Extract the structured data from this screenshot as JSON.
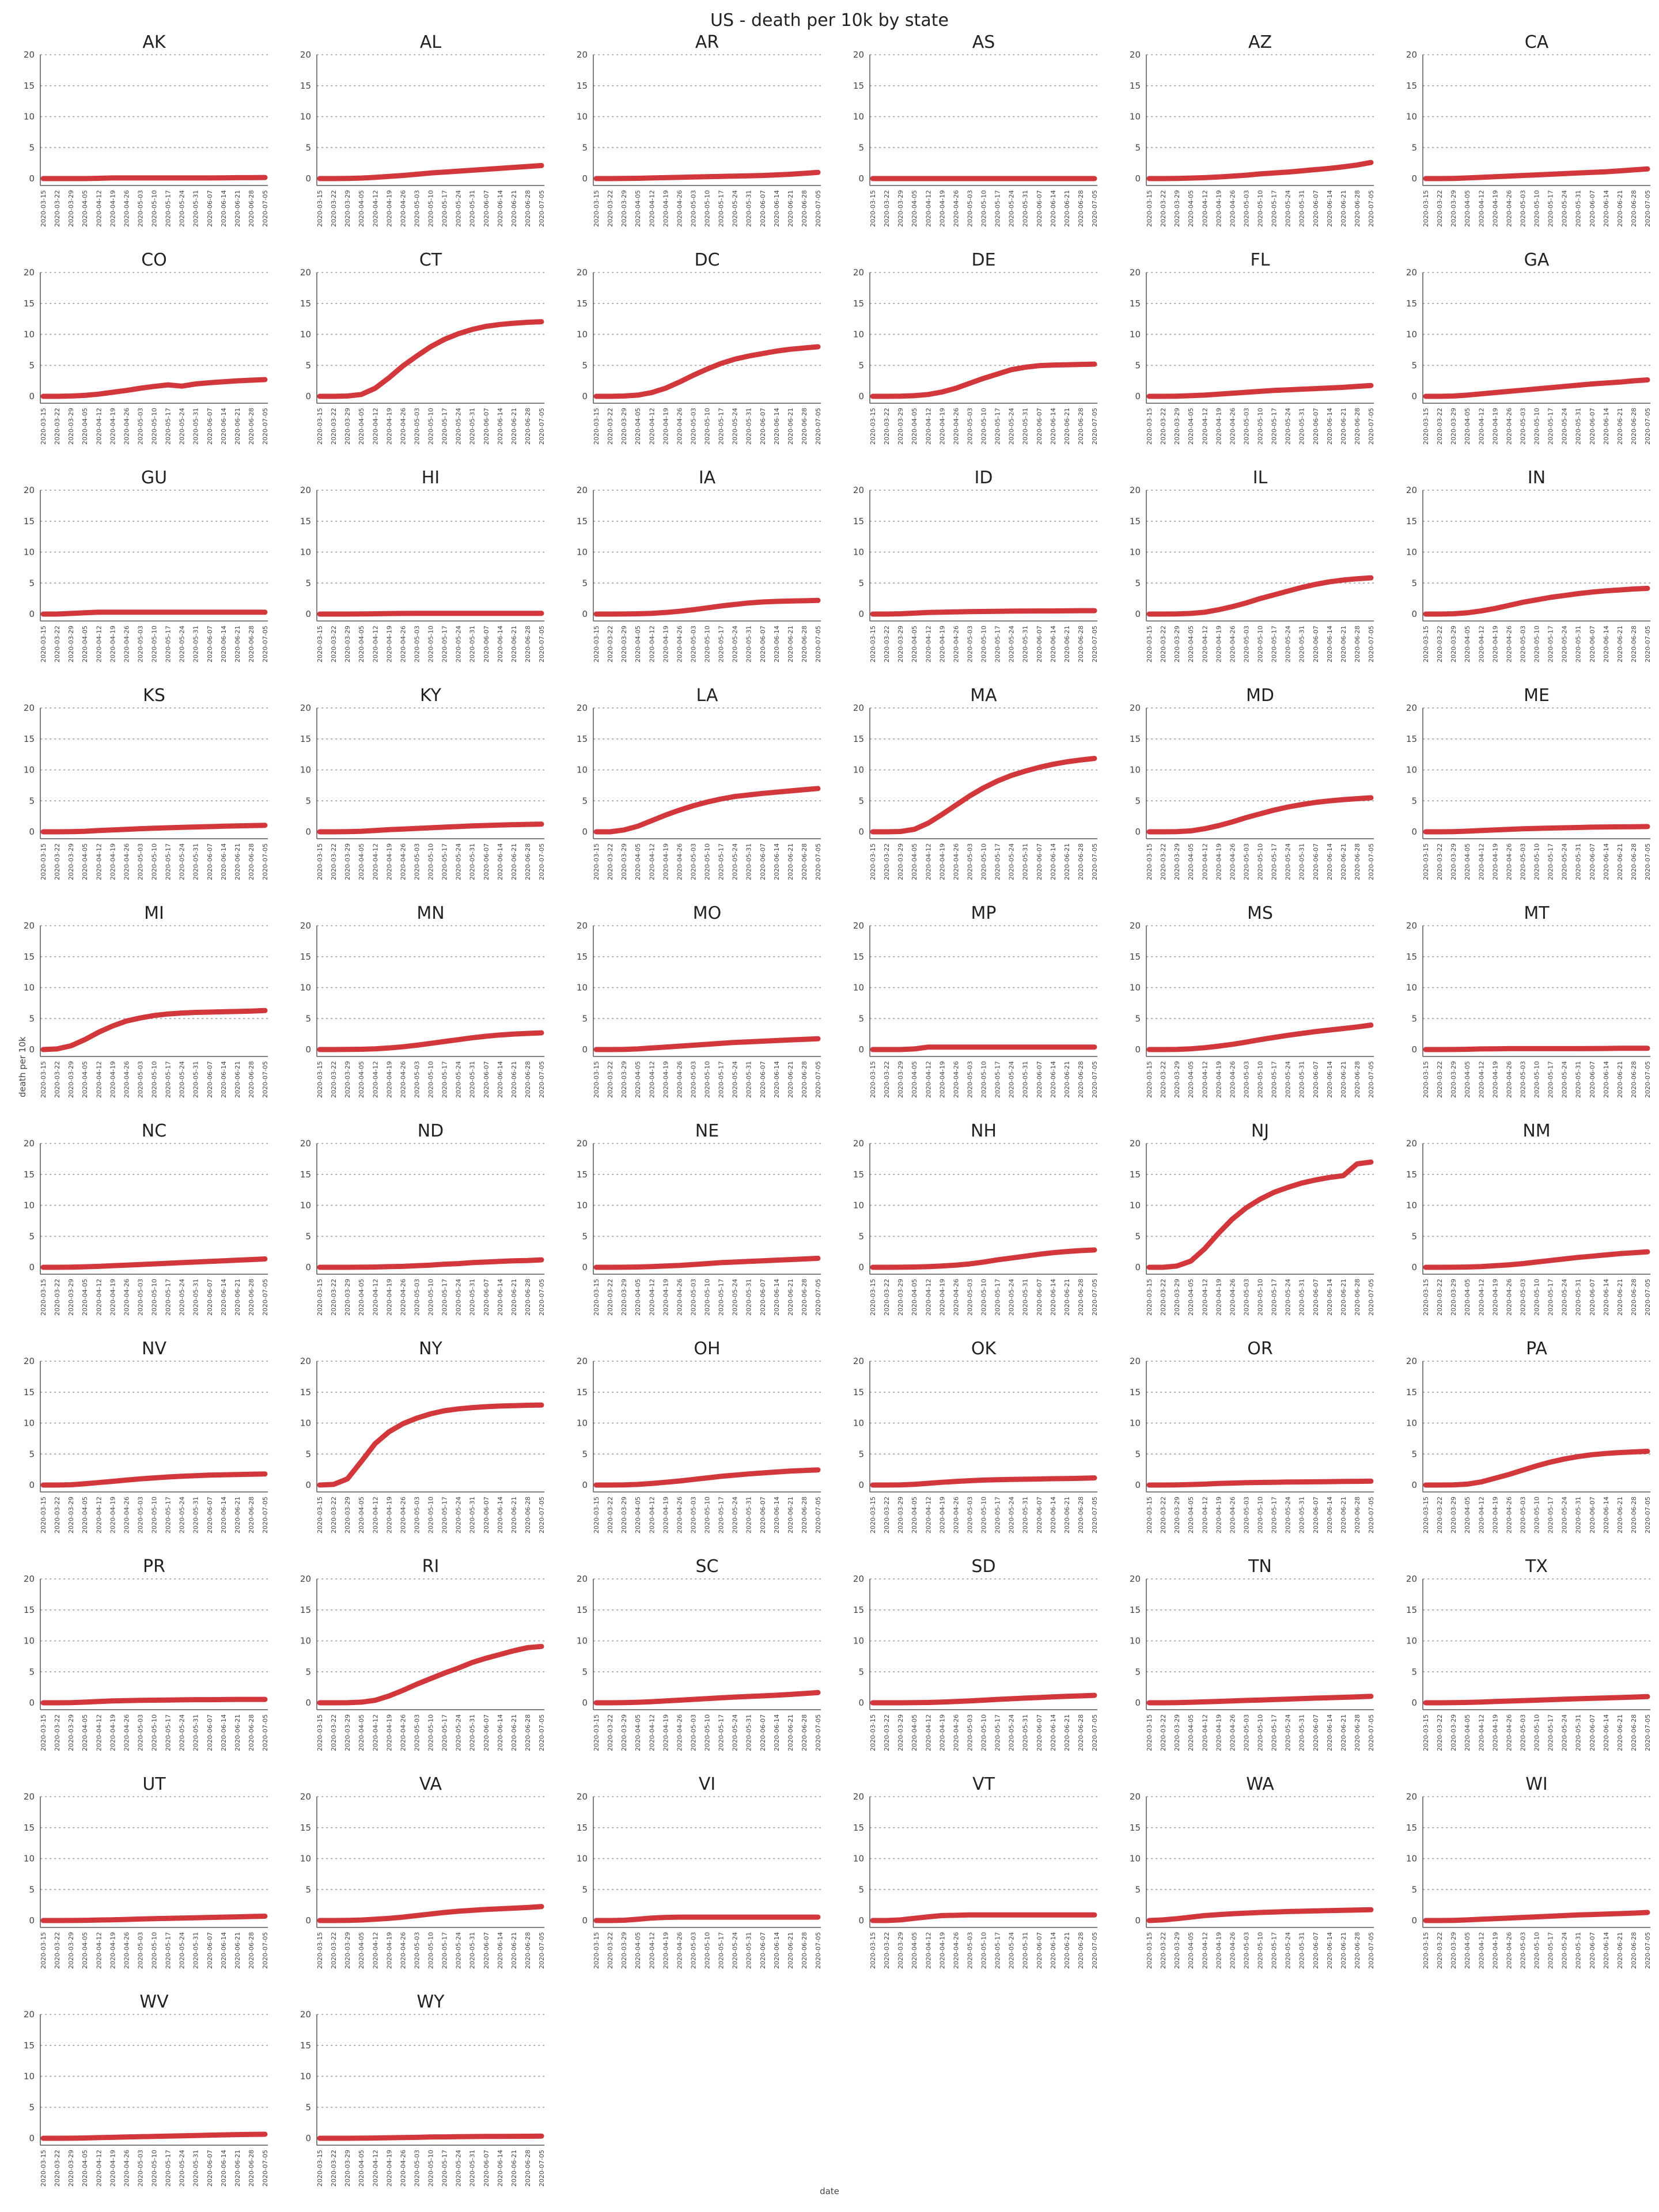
{
  "chart_data": {
    "type": "line",
    "title": "US - death per 10k by state",
    "xlabel": "date",
    "ylabel": "death per 10k",
    "ylim": [
      0,
      20
    ],
    "yticks": [
      0,
      5,
      10,
      15,
      20
    ],
    "grid": "horizontal dotted",
    "color": "#d2373b",
    "x_start": "2020-03-15",
    "x_end": "2020-07-05",
    "x_ticks": [
      "2020-03-15",
      "2020-03-22",
      "2020-03-29",
      "2020-04-05",
      "2020-04-12",
      "2020-04-19",
      "2020-04-26",
      "2020-05-03",
      "2020-05-10",
      "2020-05-17",
      "2020-05-24",
      "2020-05-31",
      "2020-06-07",
      "2020-06-14",
      "2020-06-21",
      "2020-06-28",
      "2020-07-05"
    ],
    "series": [
      {
        "name": "AK",
        "values": [
          0,
          0,
          0,
          0,
          0.05,
          0.1,
          0.1,
          0.1,
          0.1,
          0.1,
          0.1,
          0.1,
          0.1,
          0.12,
          0.15,
          0.15,
          0.18
        ]
      },
      {
        "name": "AL",
        "values": [
          0,
          0,
          0.02,
          0.08,
          0.2,
          0.35,
          0.5,
          0.7,
          0.9,
          1.05,
          1.2,
          1.35,
          1.5,
          1.65,
          1.8,
          1.95,
          2.1
        ]
      },
      {
        "name": "AR",
        "values": [
          0,
          0,
          0.02,
          0.05,
          0.1,
          0.15,
          0.2,
          0.25,
          0.3,
          0.35,
          0.4,
          0.45,
          0.5,
          0.6,
          0.7,
          0.85,
          1.0
        ]
      },
      {
        "name": "AS",
        "values": [
          0,
          0,
          0,
          0,
          0,
          0,
          0,
          0,
          0,
          0,
          0,
          0,
          0,
          0,
          0,
          0,
          0
        ]
      },
      {
        "name": "AZ",
        "values": [
          0,
          0,
          0.02,
          0.08,
          0.15,
          0.25,
          0.4,
          0.55,
          0.75,
          0.9,
          1.05,
          1.25,
          1.45,
          1.65,
          1.9,
          2.2,
          2.6
        ]
      },
      {
        "name": "CA",
        "values": [
          0,
          0,
          0.03,
          0.1,
          0.2,
          0.3,
          0.4,
          0.5,
          0.6,
          0.7,
          0.8,
          0.9,
          1.0,
          1.1,
          1.25,
          1.4,
          1.55
        ]
      },
      {
        "name": "CO",
        "values": [
          0,
          0,
          0.05,
          0.15,
          0.35,
          0.65,
          0.95,
          1.3,
          1.6,
          1.85,
          1.65,
          2.0,
          2.2,
          2.35,
          2.5,
          2.6,
          2.7
        ]
      },
      {
        "name": "CT",
        "values": [
          0,
          0,
          0.05,
          0.3,
          1.3,
          3.0,
          4.9,
          6.5,
          8.0,
          9.2,
          10.1,
          10.8,
          11.3,
          11.6,
          11.8,
          11.95,
          12.05
        ]
      },
      {
        "name": "DC",
        "values": [
          0,
          0,
          0.05,
          0.2,
          0.6,
          1.3,
          2.3,
          3.4,
          4.4,
          5.3,
          6.0,
          6.5,
          6.9,
          7.3,
          7.6,
          7.8,
          8.0
        ]
      },
      {
        "name": "DE",
        "values": [
          0,
          0,
          0.02,
          0.1,
          0.3,
          0.7,
          1.3,
          2.1,
          2.9,
          3.6,
          4.3,
          4.7,
          4.95,
          5.05,
          5.1,
          5.15,
          5.2
        ]
      },
      {
        "name": "FL",
        "values": [
          0,
          0,
          0.03,
          0.1,
          0.2,
          0.35,
          0.5,
          0.65,
          0.8,
          0.95,
          1.05,
          1.15,
          1.25,
          1.35,
          1.45,
          1.6,
          1.75
        ]
      },
      {
        "name": "GA",
        "values": [
          0,
          0,
          0.05,
          0.2,
          0.4,
          0.6,
          0.8,
          1.0,
          1.2,
          1.4,
          1.6,
          1.8,
          2.0,
          2.15,
          2.3,
          2.5,
          2.65
        ]
      },
      {
        "name": "GU",
        "values": [
          0,
          0,
          0.1,
          0.2,
          0.3,
          0.3,
          0.3,
          0.3,
          0.3,
          0.3,
          0.3,
          0.3,
          0.3,
          0.3,
          0.3,
          0.3,
          0.3
        ]
      },
      {
        "name": "HI",
        "values": [
          0,
          0,
          0,
          0.02,
          0.05,
          0.08,
          0.1,
          0.12,
          0.12,
          0.12,
          0.12,
          0.12,
          0.12,
          0.12,
          0.12,
          0.12,
          0.12
        ]
      },
      {
        "name": "IA",
        "values": [
          0,
          0,
          0.01,
          0.05,
          0.12,
          0.25,
          0.45,
          0.7,
          1.0,
          1.3,
          1.55,
          1.8,
          1.95,
          2.05,
          2.1,
          2.15,
          2.2
        ]
      },
      {
        "name": "ID",
        "values": [
          0,
          0,
          0.05,
          0.15,
          0.25,
          0.3,
          0.35,
          0.4,
          0.42,
          0.45,
          0.47,
          0.48,
          0.5,
          0.5,
          0.52,
          0.55,
          0.55
        ]
      },
      {
        "name": "IL",
        "values": [
          0,
          0,
          0.02,
          0.1,
          0.3,
          0.7,
          1.2,
          1.8,
          2.5,
          3.1,
          3.7,
          4.3,
          4.8,
          5.2,
          5.5,
          5.7,
          5.85
        ]
      },
      {
        "name": "IN",
        "values": [
          0,
          0,
          0.05,
          0.2,
          0.5,
          0.9,
          1.4,
          1.9,
          2.3,
          2.7,
          3.0,
          3.3,
          3.55,
          3.75,
          3.9,
          4.05,
          4.15
        ]
      },
      {
        "name": "KS",
        "values": [
          0,
          0,
          0.02,
          0.08,
          0.2,
          0.3,
          0.4,
          0.5,
          0.58,
          0.65,
          0.72,
          0.78,
          0.84,
          0.9,
          0.95,
          1.0,
          1.05
        ]
      },
      {
        "name": "KY",
        "values": [
          0,
          0,
          0.02,
          0.08,
          0.2,
          0.35,
          0.45,
          0.55,
          0.65,
          0.75,
          0.85,
          0.95,
          1.02,
          1.1,
          1.15,
          1.2,
          1.25
        ]
      },
      {
        "name": "LA",
        "values": [
          0,
          0,
          0.3,
          0.9,
          1.8,
          2.7,
          3.5,
          4.2,
          4.8,
          5.3,
          5.7,
          5.95,
          6.2,
          6.4,
          6.6,
          6.8,
          7.0
        ]
      },
      {
        "name": "MA",
        "values": [
          0,
          0,
          0.05,
          0.4,
          1.4,
          2.8,
          4.3,
          5.8,
          7.1,
          8.2,
          9.1,
          9.8,
          10.4,
          10.9,
          11.3,
          11.6,
          11.85
        ]
      },
      {
        "name": "MD",
        "values": [
          0,
          0,
          0.03,
          0.15,
          0.5,
          1.0,
          1.6,
          2.3,
          2.9,
          3.5,
          4.0,
          4.4,
          4.75,
          5.0,
          5.2,
          5.35,
          5.5
        ]
      },
      {
        "name": "ME",
        "values": [
          0,
          0,
          0.03,
          0.1,
          0.2,
          0.3,
          0.4,
          0.48,
          0.55,
          0.6,
          0.65,
          0.7,
          0.75,
          0.78,
          0.8,
          0.82,
          0.85
        ]
      },
      {
        "name": "MI",
        "values": [
          0,
          0.1,
          0.6,
          1.6,
          2.8,
          3.8,
          4.6,
          5.1,
          5.5,
          5.75,
          5.9,
          6.0,
          6.05,
          6.1,
          6.15,
          6.2,
          6.3
        ]
      },
      {
        "name": "MN",
        "values": [
          0,
          0,
          0.02,
          0.05,
          0.12,
          0.25,
          0.45,
          0.7,
          1.0,
          1.3,
          1.6,
          1.9,
          2.15,
          2.35,
          2.5,
          2.6,
          2.7
        ]
      },
      {
        "name": "MO",
        "values": [
          0,
          0,
          0.02,
          0.1,
          0.25,
          0.4,
          0.55,
          0.7,
          0.85,
          1.0,
          1.15,
          1.25,
          1.35,
          1.45,
          1.55,
          1.65,
          1.75
        ]
      },
      {
        "name": "MP",
        "values": [
          0,
          0,
          0,
          0.1,
          0.4,
          0.4,
          0.4,
          0.4,
          0.4,
          0.4,
          0.4,
          0.4,
          0.4,
          0.4,
          0.4,
          0.4,
          0.4
        ]
      },
      {
        "name": "MS",
        "values": [
          0,
          0,
          0.03,
          0.12,
          0.3,
          0.55,
          0.85,
          1.2,
          1.6,
          1.95,
          2.3,
          2.6,
          2.9,
          3.15,
          3.4,
          3.65,
          3.95
        ]
      },
      {
        "name": "MT",
        "values": [
          0,
          0,
          0.01,
          0.05,
          0.1,
          0.12,
          0.15,
          0.15,
          0.15,
          0.15,
          0.15,
          0.15,
          0.17,
          0.18,
          0.2,
          0.2,
          0.2
        ]
      },
      {
        "name": "NC",
        "values": [
          0,
          0,
          0.02,
          0.08,
          0.15,
          0.25,
          0.35,
          0.45,
          0.55,
          0.65,
          0.75,
          0.85,
          0.95,
          1.05,
          1.15,
          1.25,
          1.35
        ]
      },
      {
        "name": "ND",
        "values": [
          0,
          0,
          0,
          0.02,
          0.05,
          0.1,
          0.15,
          0.25,
          0.35,
          0.5,
          0.6,
          0.75,
          0.85,
          0.95,
          1.05,
          1.1,
          1.2
        ]
      },
      {
        "name": "NE",
        "values": [
          0,
          0,
          0.01,
          0.05,
          0.12,
          0.2,
          0.3,
          0.45,
          0.6,
          0.75,
          0.85,
          0.95,
          1.05,
          1.15,
          1.25,
          1.35,
          1.45
        ]
      },
      {
        "name": "NH",
        "values": [
          0,
          0,
          0.01,
          0.05,
          0.1,
          0.2,
          0.35,
          0.55,
          0.85,
          1.2,
          1.5,
          1.8,
          2.1,
          2.35,
          2.55,
          2.7,
          2.8
        ]
      },
      {
        "name": "NJ",
        "values": [
          0,
          0,
          0.2,
          1.0,
          3.0,
          5.5,
          7.8,
          9.6,
          11.0,
          12.1,
          12.9,
          13.6,
          14.1,
          14.5,
          14.8,
          16.7,
          17.0
        ]
      },
      {
        "name": "NM",
        "values": [
          0,
          0,
          0.01,
          0.05,
          0.12,
          0.25,
          0.4,
          0.6,
          0.85,
          1.1,
          1.35,
          1.6,
          1.8,
          2.0,
          2.2,
          2.35,
          2.5
        ]
      },
      {
        "name": "NV",
        "values": [
          0,
          0,
          0.05,
          0.2,
          0.4,
          0.6,
          0.8,
          1.0,
          1.15,
          1.3,
          1.42,
          1.52,
          1.6,
          1.65,
          1.7,
          1.75,
          1.8
        ]
      },
      {
        "name": "NY",
        "values": [
          0,
          0.1,
          1.0,
          3.8,
          6.7,
          8.6,
          9.9,
          10.8,
          11.5,
          12.0,
          12.3,
          12.5,
          12.65,
          12.75,
          12.82,
          12.88,
          12.92
        ]
      },
      {
        "name": "OH",
        "values": [
          0,
          0,
          0.02,
          0.1,
          0.25,
          0.45,
          0.65,
          0.9,
          1.15,
          1.4,
          1.6,
          1.8,
          1.95,
          2.1,
          2.25,
          2.35,
          2.45
        ]
      },
      {
        "name": "OK",
        "values": [
          0,
          0,
          0.03,
          0.12,
          0.28,
          0.45,
          0.58,
          0.7,
          0.8,
          0.86,
          0.9,
          0.94,
          0.98,
          1.02,
          1.05,
          1.1,
          1.15
        ]
      },
      {
        "name": "OR",
        "values": [
          0,
          0,
          0.02,
          0.08,
          0.15,
          0.25,
          0.32,
          0.38,
          0.42,
          0.45,
          0.48,
          0.5,
          0.52,
          0.55,
          0.58,
          0.6,
          0.62
        ]
      },
      {
        "name": "PA",
        "values": [
          0,
          0,
          0.02,
          0.15,
          0.5,
          1.1,
          1.7,
          2.4,
          3.1,
          3.7,
          4.2,
          4.6,
          4.9,
          5.1,
          5.25,
          5.35,
          5.45
        ]
      },
      {
        "name": "PR",
        "values": [
          0,
          0,
          0.02,
          0.1,
          0.2,
          0.3,
          0.35,
          0.4,
          0.42,
          0.45,
          0.47,
          0.5,
          0.5,
          0.52,
          0.55,
          0.55,
          0.55
        ]
      },
      {
        "name": "RI",
        "values": [
          0,
          0,
          0.01,
          0.1,
          0.4,
          1.1,
          2.0,
          3.0,
          3.9,
          4.8,
          5.6,
          6.5,
          7.2,
          7.8,
          8.4,
          8.9,
          9.1
        ]
      },
      {
        "name": "SC",
        "values": [
          0,
          0,
          0.02,
          0.08,
          0.18,
          0.3,
          0.42,
          0.55,
          0.68,
          0.8,
          0.92,
          1.02,
          1.12,
          1.22,
          1.35,
          1.5,
          1.65
        ]
      },
      {
        "name": "SD",
        "values": [
          0,
          0,
          0,
          0.02,
          0.05,
          0.12,
          0.2,
          0.3,
          0.42,
          0.55,
          0.65,
          0.75,
          0.85,
          0.95,
          1.05,
          1.12,
          1.2
        ]
      },
      {
        "name": "TN",
        "values": [
          0,
          0,
          0.02,
          0.08,
          0.15,
          0.22,
          0.3,
          0.38,
          0.45,
          0.52,
          0.6,
          0.68,
          0.75,
          0.82,
          0.88,
          0.95,
          1.05
        ]
      },
      {
        "name": "TX",
        "values": [
          0,
          0,
          0.02,
          0.06,
          0.12,
          0.2,
          0.28,
          0.35,
          0.42,
          0.5,
          0.58,
          0.65,
          0.72,
          0.78,
          0.85,
          0.92,
          1.0
        ]
      },
      {
        "name": "UT",
        "values": [
          0,
          0,
          0.01,
          0.04,
          0.08,
          0.12,
          0.18,
          0.24,
          0.3,
          0.35,
          0.4,
          0.45,
          0.5,
          0.55,
          0.6,
          0.65,
          0.7
        ]
      },
      {
        "name": "VA",
        "values": [
          0,
          0,
          0.02,
          0.08,
          0.2,
          0.35,
          0.55,
          0.8,
          1.05,
          1.3,
          1.5,
          1.65,
          1.8,
          1.9,
          2.0,
          2.1,
          2.25
        ]
      },
      {
        "name": "VI",
        "values": [
          0,
          0,
          0.05,
          0.2,
          0.4,
          0.5,
          0.55,
          0.55,
          0.55,
          0.55,
          0.55,
          0.55,
          0.55,
          0.55,
          0.55,
          0.55,
          0.55
        ]
      },
      {
        "name": "VT",
        "values": [
          0,
          0,
          0.1,
          0.35,
          0.6,
          0.8,
          0.85,
          0.9,
          0.9,
          0.9,
          0.9,
          0.9,
          0.9,
          0.9,
          0.9,
          0.9,
          0.9
        ]
      },
      {
        "name": "WA",
        "values": [
          0,
          0.1,
          0.3,
          0.55,
          0.8,
          0.95,
          1.1,
          1.2,
          1.3,
          1.38,
          1.45,
          1.5,
          1.55,
          1.6,
          1.65,
          1.7,
          1.75
        ]
      },
      {
        "name": "WI",
        "values": [
          0,
          0,
          0.03,
          0.1,
          0.2,
          0.3,
          0.4,
          0.5,
          0.6,
          0.7,
          0.8,
          0.9,
          0.97,
          1.05,
          1.12,
          1.2,
          1.3
        ]
      },
      {
        "name": "WV",
        "values": [
          0,
          0,
          0.01,
          0.05,
          0.1,
          0.15,
          0.2,
          0.25,
          0.3,
          0.35,
          0.4,
          0.45,
          0.5,
          0.55,
          0.6,
          0.62,
          0.65
        ]
      },
      {
        "name": "WY",
        "values": [
          0,
          0,
          0,
          0.02,
          0.05,
          0.08,
          0.12,
          0.15,
          0.2,
          0.22,
          0.25,
          0.28,
          0.3,
          0.3,
          0.32,
          0.33,
          0.35
        ]
      }
    ]
  }
}
